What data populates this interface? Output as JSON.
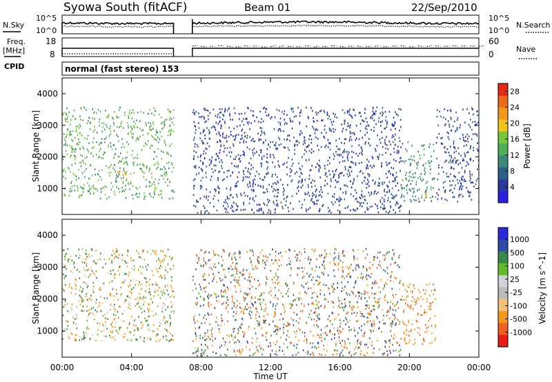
{
  "header": {
    "station": "Syowa South (fitACF)",
    "beam": "Beam 01",
    "date": "22/Sep/2010"
  },
  "top_panels": {
    "nsky_label": "N.Sky",
    "nsearch_label": "N.Search",
    "nsky_ticks": [
      "10^5",
      "10^0"
    ],
    "nsearch_ticks": [
      "10^5",
      "10^0"
    ],
    "freq_label": "Freq.",
    "freq_unit": "[MHz]",
    "freq_ticks": [
      "18",
      "8"
    ],
    "nave_label": "Nave",
    "nave_ticks": [
      "60",
      "0"
    ],
    "cpid_label": "CPID",
    "cpid_text": "normal (fast stereo) 153"
  },
  "colors": {
    "power_scale": [
      "#2a1fe0",
      "#2a3a9a",
      "#2f5f86",
      "#3c8a7a",
      "#4fae58",
      "#79c63d",
      "#f0c419",
      "#f39a1a",
      "#ee6b1a",
      "#e52a14"
    ],
    "velocity_scale": [
      "#e61e14",
      "#f06020",
      "#f39a1a",
      "#f4c07a",
      "#bbbbbb",
      "#cdd3d8",
      "#66bb2a",
      "#3a8a4a",
      "#2e4ca6",
      "#2a2ad8"
    ],
    "trace": "#000000"
  },
  "chart_data": [
    {
      "type": "heatmap",
      "title": "",
      "xlabel": "",
      "ylabel": "Slant Range [km]",
      "xlim": [
        "00:00",
        "00:00"
      ],
      "ylim": [
        180,
        4500
      ],
      "yticks": [
        1000,
        2000,
        3000,
        4000
      ],
      "colorbar": {
        "label": "Power [dB]",
        "range": [
          0,
          30
        ],
        "ticks": [
          4,
          8,
          12,
          16,
          20,
          24,
          28
        ]
      },
      "data_gap_UT": [
        "06:25",
        "07:30"
      ],
      "regions": [
        {
          "t": [
            "00:00",
            "06:25"
          ],
          "range": [
            700,
            3600
          ],
          "power_dB": [
            10,
            18
          ],
          "note_color": "green"
        },
        {
          "t": [
            "03:10",
            "04:00"
          ],
          "range": [
            1300,
            1600
          ],
          "power_dB": [
            20,
            24
          ]
        },
        {
          "t": [
            "07:30",
            "19:30"
          ],
          "range": [
            250,
            3600
          ],
          "power_dB": [
            2,
            8
          ]
        },
        {
          "t": [
            "19:30",
            "21:30"
          ],
          "range": [
            600,
            2500
          ],
          "power_dB": [
            8,
            14
          ]
        },
        {
          "t": [
            "20:40",
            "21:00"
          ],
          "range": [
            600,
            1000
          ],
          "power_dB": [
            18,
            24
          ]
        },
        {
          "t": [
            "21:30",
            "24:00"
          ],
          "range": [
            600,
            3600
          ],
          "power_dB": [
            2,
            8
          ]
        }
      ]
    },
    {
      "type": "heatmap",
      "title": "",
      "xlabel": "Time UT",
      "ylabel": "Slant Range [km]",
      "xlim": [
        "00:00",
        "00:00"
      ],
      "ylim": [
        180,
        4500
      ],
      "xticks": [
        "00:00",
        "04:00",
        "08:00",
        "12:00",
        "16:00",
        "20:00",
        "00:00"
      ],
      "yticks": [
        1000,
        2000,
        3000,
        4000
      ],
      "colorbar": {
        "label": "Velocity [m s^-1]",
        "tick_labels": [
          "1000",
          "500",
          "100",
          "25",
          "-25",
          "-100",
          "-500",
          "-1000"
        ]
      },
      "data_gap_UT": [
        "06:25",
        "07:30"
      ],
      "regions": [
        {
          "t": [
            "00:00",
            "06:25"
          ],
          "range": [
            700,
            3600
          ],
          "velocity_ms": [
            -300,
            300
          ]
        },
        {
          "t": [
            "07:30",
            "19:30"
          ],
          "range": [
            250,
            3600
          ],
          "velocity_ms": [
            -1000,
            1000
          ]
        },
        {
          "t": [
            "19:30",
            "21:30"
          ],
          "range": [
            600,
            2500
          ],
          "velocity_ms": [
            -600,
            -100
          ]
        },
        {
          "t": [
            "20:40",
            "21:00"
          ],
          "range": [
            600,
            1000
          ],
          "velocity_ms": [
            -1000,
            -500
          ]
        }
      ]
    }
  ]
}
